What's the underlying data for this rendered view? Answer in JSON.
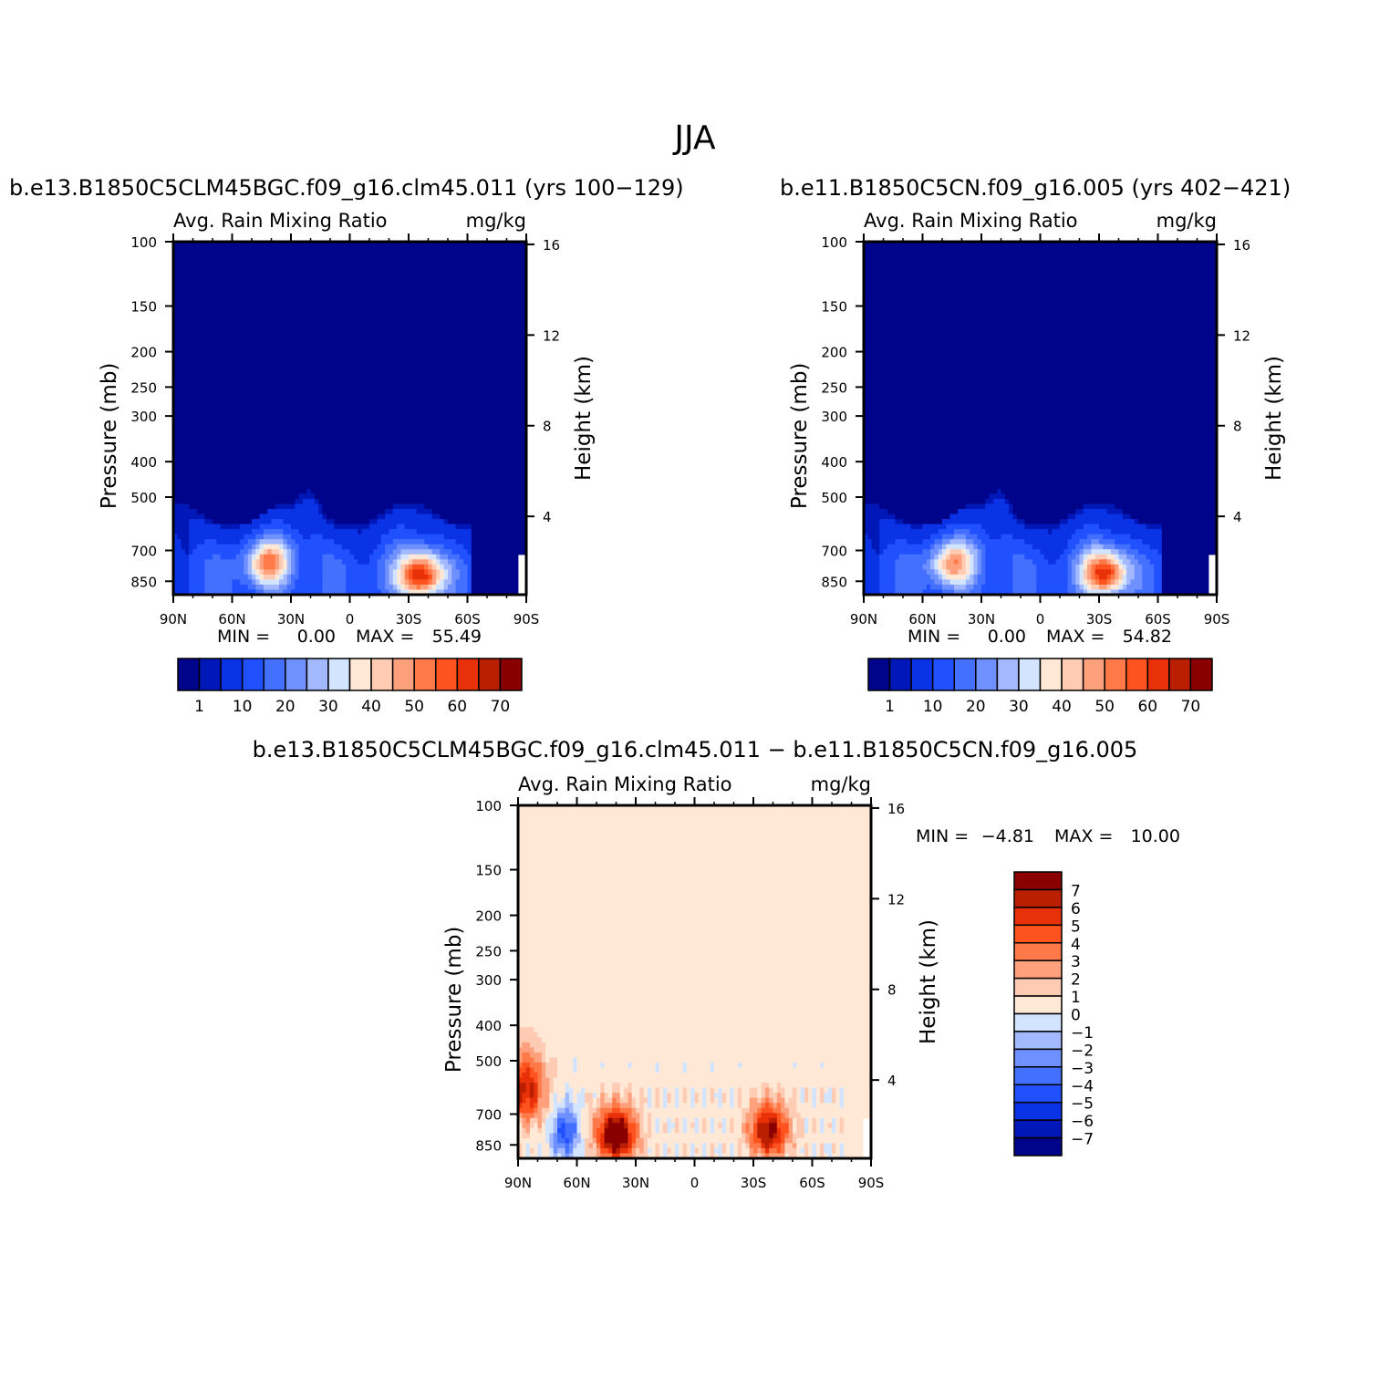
{
  "figure": {
    "title": "JJA"
  },
  "palettes": {
    "abs": [
      "#00048a",
      "#0018b8",
      "#0a33e6",
      "#2150ff",
      "#4470ff",
      "#6f90ff",
      "#a2b8ff",
      "#d2e4ff",
      "#ffe9d6",
      "#ffcbb3",
      "#ffa07c",
      "#ff7a48",
      "#ff531f",
      "#e83108",
      "#b91f00",
      "#8a0000"
    ],
    "diff": [
      "#8a0000",
      "#b91f00",
      "#e83108",
      "#ff531f",
      "#ff7a48",
      "#ffa07c",
      "#ffcbb3",
      "#ffe9d6",
      "#d2e4ff",
      "#a2b8ff",
      "#6f90ff",
      "#4470ff",
      "#2150ff",
      "#0a33e6",
      "#0018b8",
      "#00048a"
    ]
  },
  "chart_data": [
    {
      "type": "heatmap",
      "case_title": "b.e13.B1850C5CLM45BGC.f09_g16.clm45.011 (yrs 100−129)",
      "variable": "Avg. Rain Mixing Ratio",
      "units": "mg/kg",
      "ylabel": "Pressure (mb)",
      "y2label": "Height (km)",
      "x_ticks": [
        "90N",
        "60N",
        "30N",
        "0",
        "30S",
        "60S",
        "90S"
      ],
      "y_ticks": [
        100,
        150,
        200,
        250,
        300,
        400,
        500,
        700,
        850
      ],
      "y2_ticks": [
        16,
        12,
        8,
        4
      ],
      "ylim": [
        100,
        925
      ],
      "min_label": "MIN =",
      "min_value": "0.00",
      "max_label": "MAX =",
      "max_value": "55.49",
      "colorbar_labels": [
        "1",
        "10",
        "20",
        "30",
        "40",
        "50",
        "60",
        "70"
      ],
      "features": [
        {
          "lat": 42,
          "p": 760,
          "peak": 38
        },
        {
          "lat": -36,
          "p": 820,
          "peak": 55
        }
      ]
    },
    {
      "type": "heatmap",
      "case_title": "b.e11.B1850C5CN.f09_g16.005 (yrs 402−421)",
      "variable": "Avg. Rain Mixing Ratio",
      "units": "mg/kg",
      "ylabel": "Pressure (mb)",
      "y2label": "Height (km)",
      "x_ticks": [
        "90N",
        "60N",
        "30N",
        "0",
        "30S",
        "60S",
        "90S"
      ],
      "y_ticks": [
        100,
        150,
        200,
        250,
        300,
        400,
        500,
        700,
        850
      ],
      "y2_ticks": [
        16,
        12,
        8,
        4
      ],
      "ylim": [
        100,
        925
      ],
      "min_label": "MIN =",
      "min_value": "0.00",
      "max_label": "MAX =",
      "max_value": "54.82",
      "colorbar_labels": [
        "1",
        "10",
        "20",
        "30",
        "40",
        "50",
        "60",
        "70"
      ],
      "features": [
        {
          "lat": 45,
          "p": 760,
          "peak": 36
        },
        {
          "lat": -33,
          "p": 810,
          "peak": 52
        }
      ]
    },
    {
      "type": "heatmap",
      "case_title": "b.e13.B1850C5CLM45BGC.f09_g16.clm45.011 − b.e11.B1850C5CN.f09_g16.005",
      "variable": "Avg. Rain Mixing Ratio",
      "units": "mg/kg",
      "ylabel": "Pressure (mb)",
      "y2label": "Height (km)",
      "x_ticks": [
        "90N",
        "60N",
        "30N",
        "0",
        "30S",
        "60S",
        "90S"
      ],
      "y_ticks": [
        100,
        150,
        200,
        250,
        300,
        400,
        500,
        700,
        850
      ],
      "y2_ticks": [
        16,
        12,
        8,
        4
      ],
      "ylim": [
        100,
        925
      ],
      "min_label": "MIN =",
      "min_value": "−4.81",
      "max_label": "MAX =",
      "max_value": "10.00",
      "colorbar_labels": [
        "7",
        "6",
        "5",
        "4",
        "3",
        "2",
        "1",
        "0",
        "−1",
        "−2",
        "−3",
        "−4",
        "−5",
        "−6",
        "−7"
      ],
      "features": [
        {
          "lat": 40,
          "p": 800,
          "peak": 9
        },
        {
          "lat": -38,
          "p": 780,
          "peak": 7
        },
        {
          "lat": 66,
          "p": 790,
          "peak": -4.8
        },
        {
          "lat": 86,
          "p": 600,
          "peak": 6
        }
      ]
    }
  ]
}
